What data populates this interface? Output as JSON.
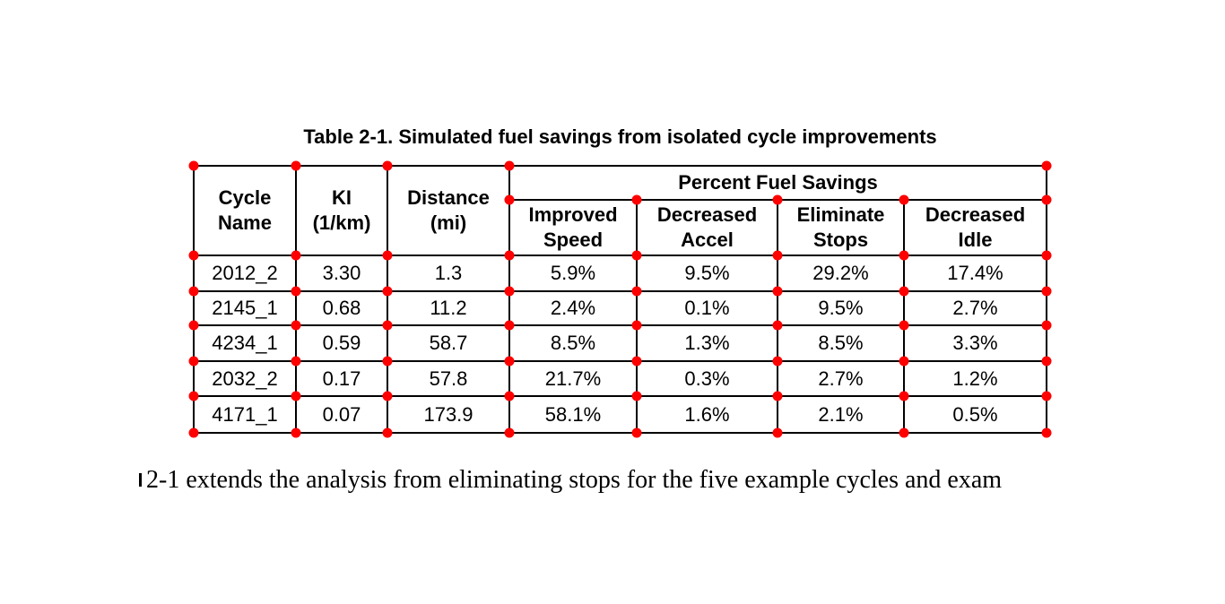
{
  "table": {
    "caption": "Table 2-1. Simulated fuel savings from isolated cycle improvements",
    "group_header": "Percent Fuel Savings",
    "headers": [
      {
        "line1": "Cycle",
        "line2": "Name"
      },
      {
        "line1": "KI",
        "line2": "(1/km)"
      },
      {
        "line1": "Distance",
        "line2": "(mi)"
      },
      {
        "line1": "Improved",
        "line2": "Speed"
      },
      {
        "line1": "Decreased",
        "line2": "Accel"
      },
      {
        "line1": "Eliminate",
        "line2": "Stops"
      },
      {
        "line1": "Decreased",
        "line2": "Idle"
      }
    ],
    "rows": [
      [
        "2012_2",
        "3.30",
        "1.3",
        "5.9%",
        "9.5%",
        "29.2%",
        "17.4%"
      ],
      [
        "2145_1",
        "0.68",
        "11.2",
        "2.4%",
        "0.1%",
        "9.5%",
        "2.7%"
      ],
      [
        "4234_1",
        "0.59",
        "58.7",
        "8.5%",
        "1.3%",
        "8.5%",
        "3.3%"
      ],
      [
        "2032_2",
        "0.17",
        "57.8",
        "21.7%",
        "0.3%",
        "2.7%",
        "1.2%"
      ],
      [
        "4171_1",
        "0.07",
        "173.9",
        "58.1%",
        "1.6%",
        "2.1%",
        "0.5%"
      ]
    ]
  },
  "body_text": "2-1 extends the analysis from eliminating stops for the five example cycles and exam",
  "annotation": {
    "dot_color": "#ff0000"
  }
}
